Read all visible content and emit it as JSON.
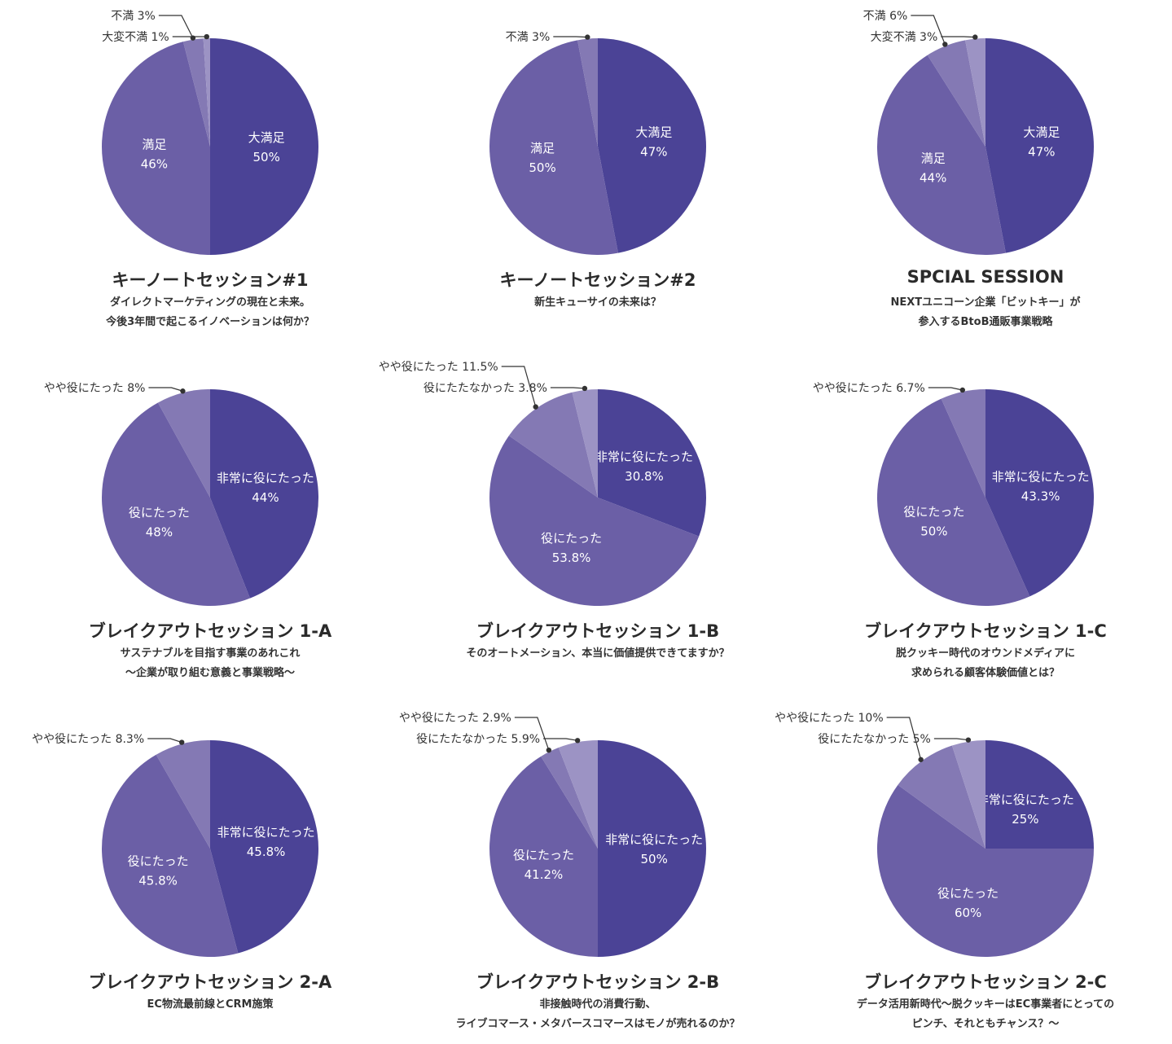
{
  "colors": {
    "slice_dark": "#4b4396",
    "slice_mid": "#6b5fa6",
    "slice_light": "#8479b4",
    "slice_lightest": "#9c93c4",
    "leader": "#333333",
    "inside_text": "#ffffff"
  },
  "chart_data": [
    {
      "type": "pie",
      "title": "キーノートセッション#1",
      "subtitle": [
        "ダイレクトマーケティングの現在と未来。",
        "今後3年間で起こるイノベーションは何か？"
      ],
      "slices": [
        {
          "label": "大満足",
          "value_label": "50%",
          "value": 50,
          "placement": "inside"
        },
        {
          "label": "満足",
          "value_label": "46%",
          "value": 46,
          "placement": "inside"
        },
        {
          "label": "不満",
          "value_label": "3%",
          "value": 3,
          "placement": "outside"
        },
        {
          "label": "大変不満",
          "value_label": "1%",
          "value": 1,
          "placement": "outside"
        }
      ]
    },
    {
      "type": "pie",
      "title": "キーノートセッション#2",
      "subtitle": [
        "新生キューサイの未来は？"
      ],
      "slices": [
        {
          "label": "大満足",
          "value_label": "47%",
          "value": 47,
          "placement": "inside"
        },
        {
          "label": "満足",
          "value_label": "50%",
          "value": 50,
          "placement": "inside"
        },
        {
          "label": "不満",
          "value_label": "3%",
          "value": 3,
          "placement": "outside"
        }
      ]
    },
    {
      "type": "pie",
      "title": "SPCIAL SESSION",
      "subtitle": [
        "NEXTユニコーン企業「ビットキー」が",
        "参入するBtoB通販事業戦略"
      ],
      "slices": [
        {
          "label": "大満足",
          "value_label": "47%",
          "value": 47,
          "placement": "inside"
        },
        {
          "label": "満足",
          "value_label": "44%",
          "value": 44,
          "placement": "inside"
        },
        {
          "label": "不満",
          "value_label": "6%",
          "value": 6,
          "placement": "outside"
        },
        {
          "label": "大変不満",
          "value_label": "3%",
          "value": 3,
          "placement": "outside"
        }
      ]
    },
    {
      "type": "pie",
      "title": "ブレイクアウトセッション 1-A",
      "subtitle": [
        "サステナブルを目指す事業のあれこれ",
        "～企業が取り組む意義と事業戦略～"
      ],
      "slices": [
        {
          "label": "非常に役にたった",
          "value_label": "44%",
          "value": 44,
          "placement": "inside"
        },
        {
          "label": "役にたった",
          "value_label": "48%",
          "value": 48,
          "placement": "inside"
        },
        {
          "label": "やや役にたった",
          "value_label": "8%",
          "value": 8,
          "placement": "outside"
        }
      ]
    },
    {
      "type": "pie",
      "title": "ブレイクアウトセッション 1-B",
      "subtitle": [
        "そのオートメーション、本当に価値提供できてますか？"
      ],
      "slices": [
        {
          "label": "非常に役にたった",
          "value_label": "30.8%",
          "value": 30.8,
          "placement": "inside"
        },
        {
          "label": "役にたった",
          "value_label": "53.8%",
          "value": 53.8,
          "placement": "inside"
        },
        {
          "label": "やや役にたった",
          "value_label": "11.5%",
          "value": 11.5,
          "placement": "outside"
        },
        {
          "label": "役にたたなかった",
          "value_label": "3.8%",
          "value": 3.8,
          "placement": "outside"
        }
      ]
    },
    {
      "type": "pie",
      "title": "ブレイクアウトセッション 1-C",
      "subtitle": [
        "脱クッキー時代のオウンドメディアに",
        "求められる顧客体験価値とは？"
      ],
      "slices": [
        {
          "label": "非常に役にたった",
          "value_label": "43.3%",
          "value": 43.3,
          "placement": "inside"
        },
        {
          "label": "役にたった",
          "value_label": "50%",
          "value": 50,
          "placement": "inside"
        },
        {
          "label": "やや役にたった",
          "value_label": "6.7%",
          "value": 6.7,
          "placement": "outside"
        }
      ]
    },
    {
      "type": "pie",
      "title": "ブレイクアウトセッション 2-A",
      "subtitle": [
        "EC物流最前線とCRM施策"
      ],
      "slices": [
        {
          "label": "非常に役にたった",
          "value_label": "45.8%",
          "value": 45.8,
          "placement": "inside"
        },
        {
          "label": "役にたった",
          "value_label": "45.8%",
          "value": 45.8,
          "placement": "inside"
        },
        {
          "label": "やや役にたった",
          "value_label": "8.3%",
          "value": 8.3,
          "placement": "outside"
        }
      ]
    },
    {
      "type": "pie",
      "title": "ブレイクアウトセッション 2-B",
      "subtitle": [
        "非接触時代の消費行動、",
        "ライブコマース・メタバースコマースはモノが売れるのか？"
      ],
      "slices": [
        {
          "label": "非常に役にたった",
          "value_label": "50%",
          "value": 50,
          "placement": "inside"
        },
        {
          "label": "役にたった",
          "value_label": "41.2%",
          "value": 41.2,
          "placement": "inside"
        },
        {
          "label": "やや役にたった",
          "value_label": "2.9%",
          "value": 2.9,
          "placement": "outside"
        },
        {
          "label": "役にたたなかった",
          "value_label": "5.9%",
          "value": 5.9,
          "placement": "outside"
        }
      ]
    },
    {
      "type": "pie",
      "title": "ブレイクアウトセッション 2-C",
      "subtitle": [
        "データ活用新時代～脱クッキーはEC事業者にとっての",
        "ピンチ、それともチャンス？～"
      ],
      "slices": [
        {
          "label": "非常に役にたった",
          "value_label": "25%",
          "value": 25,
          "placement": "inside"
        },
        {
          "label": "役にたった",
          "value_label": "60%",
          "value": 60,
          "placement": "inside"
        },
        {
          "label": "やや役にたった",
          "value_label": "10%",
          "value": 10,
          "placement": "outside"
        },
        {
          "label": "役にたたなかった",
          "value_label": "5%",
          "value": 5,
          "placement": "outside"
        }
      ]
    }
  ]
}
